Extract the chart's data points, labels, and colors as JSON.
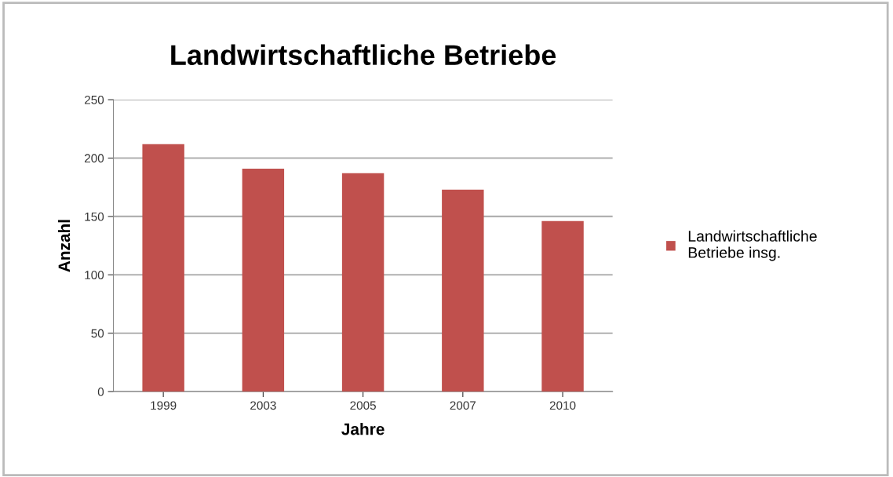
{
  "chart_data": {
    "type": "bar",
    "title": "Landwirtschaftliche Betriebe",
    "xlabel": "Jahre",
    "ylabel": "Anzahl",
    "categories": [
      "1999",
      "2003",
      "2005",
      "2007",
      "2010"
    ],
    "series": [
      {
        "name": "Landwirtschaftliche\nBetriebe insg.",
        "color": "#c0504d",
        "values": [
          212,
          191,
          187,
          173,
          146
        ]
      }
    ],
    "ylim": [
      0,
      250
    ],
    "yticks": [
      0,
      50,
      100,
      150,
      200,
      250
    ],
    "grid": "y",
    "legend": "right"
  }
}
